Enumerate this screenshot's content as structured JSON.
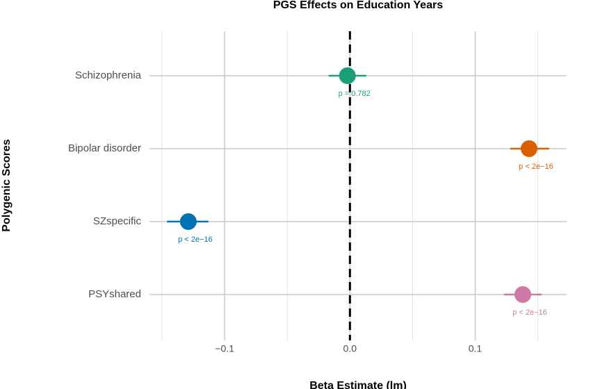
{
  "chart_data": {
    "type": "forest",
    "title": "PGS Effects on Education Years",
    "x_label": "Beta Estimate (lm)",
    "y_label": "Polygenic Scores",
    "categories": [
      "Schizophrenia",
      "Bipolar disorder",
      "SZspecific",
      "PSYshared"
    ],
    "values": [
      -0.002,
      0.143,
      -0.129,
      0.138
    ],
    "lower": [
      -0.017,
      0.128,
      -0.146,
      0.123
    ],
    "upper": [
      0.013,
      0.159,
      -0.113,
      0.153
    ],
    "p_labels": [
      "p = 0.782",
      "p < 2e−16",
      "p < 2e−16",
      "p < 2e−16"
    ],
    "colors": [
      "#1b9e77",
      "#d95f02",
      "#0072b2",
      "#cc79a7"
    ],
    "xlim": [
      -0.16,
      0.173
    ],
    "xticks": [
      {
        "value": -0.1,
        "label": "−0.1"
      },
      {
        "value": 0,
        "label": "0.0"
      },
      0.1
    ],
    "minor_xticks": [
      -0.15,
      -0.05,
      0.05,
      0.15
    ],
    "ref_line": 0,
    "grid": true
  }
}
